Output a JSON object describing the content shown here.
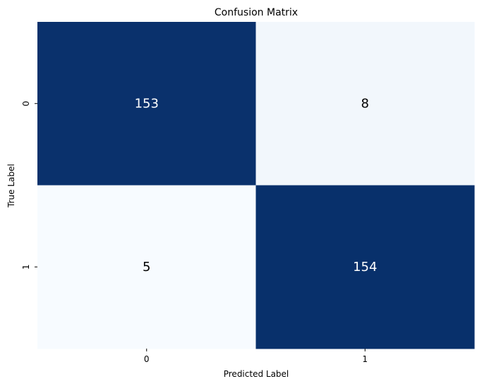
{
  "chart_data": {
    "type": "heatmap",
    "title": "Confusion Matrix",
    "xlabel": "Predicted Label",
    "ylabel": "True Label",
    "x_categories": [
      "0",
      "1"
    ],
    "y_categories": [
      "0",
      "1"
    ],
    "values": [
      [
        153,
        8
      ],
      [
        5,
        154
      ]
    ],
    "colormap": "Blues",
    "colors": {
      "low": "#f7fbff",
      "high": "#08306b",
      "text_dark_bg": "#ffffff",
      "text_light_bg": "#000000"
    },
    "colorbar": false,
    "annotations": true
  }
}
